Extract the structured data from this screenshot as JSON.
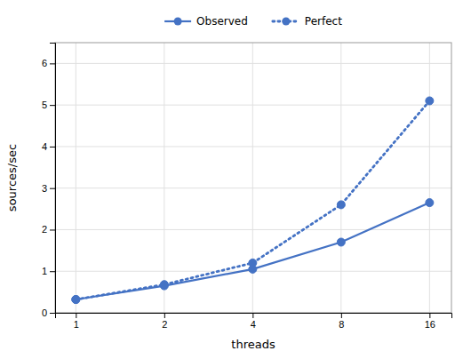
{
  "chart_data": {
    "type": "line",
    "xlabel": "threads",
    "ylabel": "sources/sec",
    "x": [
      1,
      2,
      4,
      8,
      16
    ],
    "series": [
      {
        "name": "Observed",
        "color": "#4472C4",
        "values": [
          0.32,
          0.65,
          1.05,
          1.7,
          2.65
        ],
        "line_style": "solid",
        "marker": "circle"
      },
      {
        "name": "Perfect",
        "color": "#4472C4",
        "values": [
          0.32,
          0.68,
          1.2,
          2.6,
          5.1
        ],
        "line_style": "dotted",
        "marker": "circle"
      }
    ],
    "log": "x",
    "xlim": [
      0.85,
      19
    ],
    "xticks": [
      1,
      2,
      4,
      8,
      16
    ],
    "ylim": [
      0,
      6.5
    ],
    "yticks": [
      0,
      1,
      2,
      3,
      4,
      5,
      6
    ],
    "grid": true,
    "legend": "top"
  }
}
